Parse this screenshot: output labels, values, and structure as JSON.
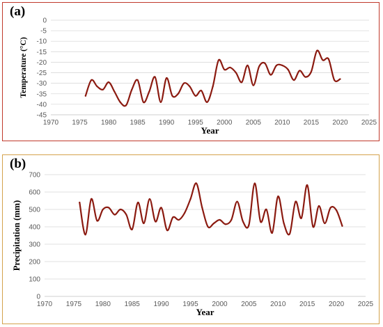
{
  "chart_data": [
    {
      "panel_label": "(a)",
      "type": "line",
      "title": "",
      "xlabel": "Year",
      "ylabel": "Temperature (°C)",
      "xlim": [
        1970,
        2025
      ],
      "ylim": [
        -45,
        0
      ],
      "x_ticks": [
        1970,
        1975,
        1980,
        1985,
        1990,
        1995,
        2000,
        2005,
        2010,
        2015,
        2020,
        2025
      ],
      "y_ticks": [
        0,
        -5,
        -10,
        -15,
        -20,
        -25,
        -30,
        -35,
        -40,
        -45
      ],
      "grid": "horizontal",
      "legend": "none",
      "line_color": "#8b1a10",
      "series": [
        {
          "x": [
            1976,
            1977,
            1978,
            1979,
            1980,
            1981,
            1982,
            1983,
            1984,
            1985,
            1986,
            1987,
            1988,
            1989,
            1990,
            1991,
            1992,
            1993,
            1994,
            1995,
            1996,
            1997,
            1998,
            1999,
            2000,
            2001,
            2002,
            2003,
            2004,
            2005,
            2006,
            2007,
            2008,
            2009,
            2010,
            2011,
            2012,
            2013,
            2014,
            2015,
            2016,
            2017,
            2018,
            2019,
            2020
          ],
          "values": [
            -36,
            -28.5,
            -31.5,
            -33,
            -29.5,
            -34,
            -39,
            -40.5,
            -33,
            -28.5,
            -39,
            -34,
            -27,
            -39,
            -27.5,
            -36,
            -35,
            -30,
            -31.5,
            -36,
            -33.5,
            -39,
            -31.5,
            -19,
            -23.5,
            -22.5,
            -25,
            -29.5,
            -21.5,
            -31,
            -22,
            -20.5,
            -26,
            -21.5,
            -21.5,
            -23.5,
            -28.5,
            -24,
            -27,
            -24.5,
            -14.5,
            -19,
            -18.5,
            -28.5,
            -28
          ]
        }
      ]
    },
    {
      "panel_label": "(b)",
      "type": "line",
      "title": "",
      "xlabel": "Year",
      "ylabel": "Precipitation (mm)",
      "xlim": [
        1970,
        2025
      ],
      "ylim": [
        0,
        700
      ],
      "x_ticks": [
        1970,
        1975,
        1980,
        1985,
        1990,
        1995,
        2000,
        2005,
        2010,
        2015,
        2020,
        2025
      ],
      "y_ticks": [
        0,
        100,
        200,
        300,
        400,
        500,
        600,
        700
      ],
      "grid": "horizontal",
      "legend": "none",
      "line_color": "#8b1a10",
      "series": [
        {
          "x": [
            1976,
            1977,
            1978,
            1979,
            1980,
            1981,
            1982,
            1983,
            1984,
            1985,
            1986,
            1987,
            1988,
            1989,
            1990,
            1991,
            1992,
            1993,
            1994,
            1995,
            1996,
            1997,
            1998,
            1999,
            2000,
            2001,
            2002,
            2003,
            2004,
            2005,
            2006,
            2007,
            2008,
            2009,
            2010,
            2011,
            2012,
            2013,
            2014,
            2015,
            2016,
            2017,
            2018,
            2019,
            2020,
            2021
          ],
          "values": [
            540,
            355,
            560,
            435,
            500,
            510,
            470,
            500,
            470,
            385,
            540,
            420,
            560,
            430,
            510,
            380,
            455,
            440,
            480,
            560,
            650,
            510,
            400,
            420,
            440,
            415,
            440,
            545,
            430,
            410,
            650,
            430,
            500,
            365,
            575,
            420,
            360,
            545,
            450,
            640,
            400,
            520,
            420,
            510,
            495,
            405
          ]
        }
      ]
    }
  ]
}
